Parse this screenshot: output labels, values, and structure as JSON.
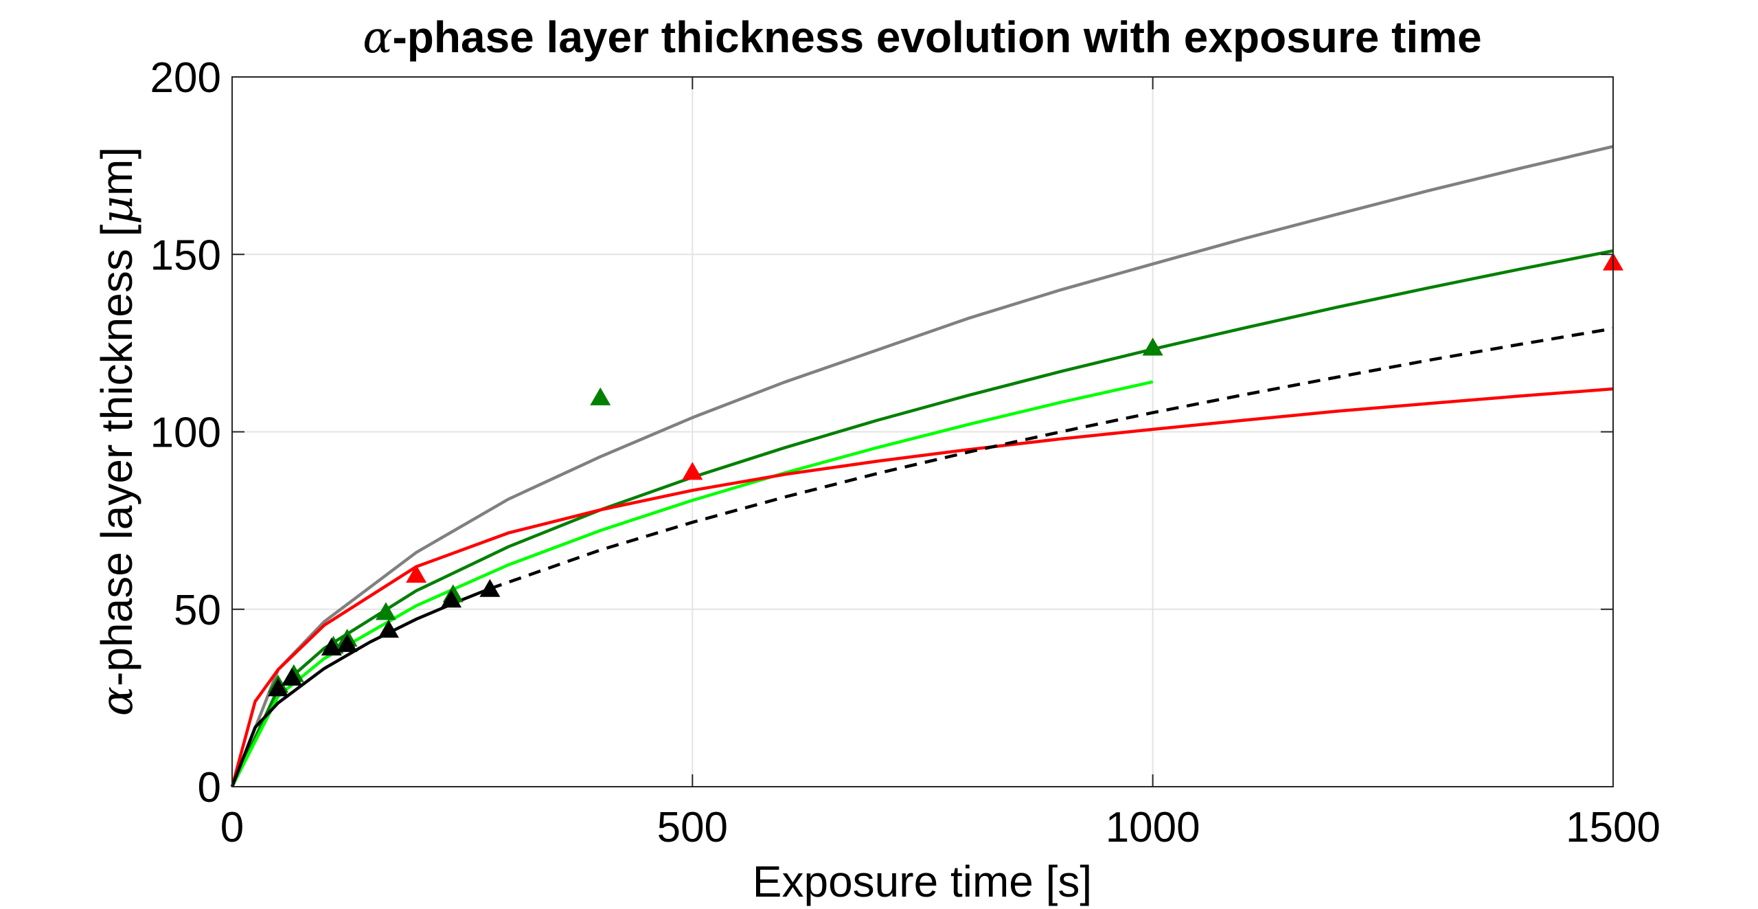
{
  "chart_data": {
    "type": "line",
    "title": {
      "symbol": "α",
      "text": "-phase layer thickness evolution with exposure time"
    },
    "xlabel": "Exposure time [s]",
    "ylabel": {
      "symbol": "α",
      "pre": "-phase layer thickness [",
      "unit_symbol": "μ",
      "post": "m]"
    },
    "xlim": [
      0,
      1500
    ],
    "ylim": [
      0,
      200
    ],
    "xticks": [
      0,
      500,
      1000,
      1500
    ],
    "yticks": [
      0,
      50,
      100,
      150,
      200
    ],
    "grid": true,
    "colors": {
      "gray": "#808080",
      "dark_green": "#008000",
      "light_green": "#00ff00",
      "red": "#ff0000",
      "black": "#000000"
    },
    "series": [
      {
        "style": "solid",
        "color": "#808080",
        "x": [
          0,
          50,
          100,
          200,
          300,
          400,
          500,
          600,
          700,
          800,
          900,
          1000,
          1100,
          1200,
          1300,
          1400,
          1500
        ],
        "y": [
          0,
          33,
          46.5,
          66,
          81,
          93,
          104,
          114,
          123,
          132,
          140,
          147.3,
          154.5,
          161.3,
          168,
          174.3,
          180.4
        ]
      },
      {
        "style": "solid",
        "color": "#008000",
        "x": [
          0,
          50,
          100,
          200,
          300,
          400,
          500,
          600,
          700,
          800,
          900,
          1000,
          1100,
          1200,
          1300,
          1400,
          1500
        ],
        "y": [
          0,
          27.6,
          39,
          55.2,
          67.6,
          78,
          87.2,
          95.5,
          103.2,
          110.3,
          117,
          123.3,
          129.3,
          135.1,
          140.6,
          145.9,
          151
        ]
      },
      {
        "style": "solid",
        "color": "#00ff00",
        "x": [
          0,
          50,
          100,
          200,
          300,
          400,
          500,
          600,
          700,
          800,
          900,
          1000
        ],
        "y": [
          0,
          25.5,
          36.1,
          51,
          62.5,
          72.2,
          80.7,
          88.4,
          95.5,
          102.1,
          108.3,
          114.1
        ]
      },
      {
        "style": "solid",
        "color": "#ff0000",
        "x": [
          0,
          25,
          50,
          100,
          200,
          300,
          400,
          500,
          600,
          700,
          800,
          900,
          1000,
          1100,
          1200,
          1300,
          1400,
          1500
        ],
        "y": [
          0,
          24,
          33,
          45.5,
          62,
          71.5,
          78,
          83.5,
          88,
          91.7,
          95,
          98,
          100.7,
          103.3,
          105.8,
          108,
          110.1,
          112.1
        ]
      },
      {
        "style": "solid",
        "color": "#000000",
        "x": [
          0,
          25,
          50,
          100,
          150,
          200,
          250,
          280
        ],
        "y": [
          0,
          16.7,
          23.6,
          33.3,
          40.8,
          47.2,
          52.7,
          55.8
        ]
      },
      {
        "style": "dashed",
        "color": "#000000",
        "x": [
          280,
          400,
          500,
          600,
          700,
          800,
          900,
          1000,
          1100,
          1200,
          1300,
          1400,
          1500
        ],
        "y": [
          55.8,
          66.7,
          74.5,
          81.6,
          88.2,
          94.3,
          100,
          105.4,
          110.5,
          115.4,
          120.2,
          124.7,
          129.1
        ]
      }
    ],
    "markers": [
      {
        "shape": "triangle",
        "color": "#ff0000",
        "x": [
          50,
          200,
          500,
          1000,
          1500
        ],
        "y": [
          29,
          60,
          89,
          124,
          148
        ]
      },
      {
        "shape": "triangle",
        "color": "#008000",
        "x": [
          50,
          67,
          110,
          125,
          167,
          240,
          400,
          1000
        ],
        "y": [
          29,
          32,
          40,
          42,
          49.5,
          54.5,
          110,
          124
        ]
      },
      {
        "shape": "triangle",
        "color": "#000000",
        "x": [
          50,
          65,
          108,
          125,
          170,
          238,
          280
        ],
        "y": [
          28,
          31,
          39.5,
          40.5,
          44.5,
          53,
          56
        ]
      }
    ]
  }
}
